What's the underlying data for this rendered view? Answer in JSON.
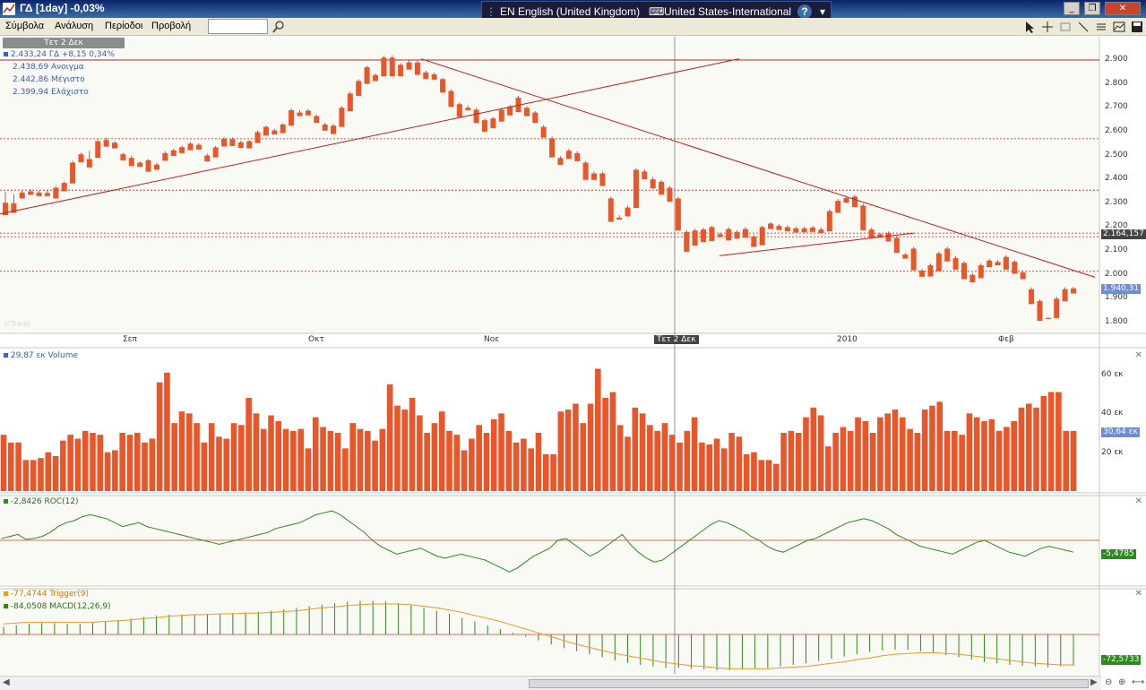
{
  "window": {
    "title": "ΓΔ [1day] -0,03%",
    "minimize": "_",
    "restore": "❐",
    "close": "✕"
  },
  "langbar": {
    "language": "EN English (United Kingdom)",
    "keyboard": "United States-International",
    "help": "?"
  },
  "menu": {
    "items": [
      "Σύμβολα",
      "Ανάλυση",
      "Περίοδοι",
      "Προβολή"
    ],
    "search_value": ""
  },
  "price_panel": {
    "date_badge": "Τετ 2 Δεκ",
    "legend": [
      "2.433,24 ΓΔ +8,15 0,34%",
      "2.438,69 Ανοιγμα",
      "2.442,86 Μέγιστο",
      "2.399,94 Ελάχιστο"
    ],
    "y_ticks": [
      "2.900",
      "2.800",
      "2.700",
      "2.600",
      "2.500",
      "2.400",
      "2.300",
      "2.200",
      "2.100",
      "2.000",
      "1.900",
      "1.800"
    ],
    "price_tag_1": "2.164,157",
    "price_tag_2": "1.940,31",
    "x_labels": [
      "Σεπ",
      "Οκτ",
      "Νοε",
      "Τετ 2 Δεκ",
      "2010",
      "Φεβ"
    ],
    "watermark": "©Trade"
  },
  "volume_panel": {
    "legend": "29,87 εκ Volume",
    "y_ticks": [
      "60 εκ",
      "40 εκ",
      "20 εκ"
    ],
    "value_tag": "30,64 εκ"
  },
  "roc_panel": {
    "legend": "-2,8426 ROC(12)",
    "value_tag": "-5,4785"
  },
  "macd_panel": {
    "legend_trigger": "-77,4744 Trigger(9)",
    "legend_macd": "-84,0508 MACD(12,26,9)",
    "value_tag": "-72,5733"
  },
  "colors": {
    "up": "#3b5fd1",
    "down": "#e8562a",
    "trendline": "#c02020",
    "roc": "#2c8a1e",
    "macd": "#2c8a1e",
    "trigger": "#e89a2a"
  },
  "chart_data": {
    "type": "candlestick",
    "y_range_price": [
      1800,
      2900
    ],
    "candles": [
      [
        2302,
        2347,
        2270,
        2250
      ],
      [
        2300,
        2338,
        2280,
        2260
      ],
      [
        2345,
        2352,
        2330,
        2320
      ],
      [
        2350,
        2360,
        2340,
        2335
      ],
      [
        2345,
        2352,
        2340,
        2330
      ],
      [
        2343,
        2356,
        2337,
        2330
      ],
      [
        2365,
        2372,
        2325,
        2320
      ],
      [
        2385,
        2392,
        2358,
        2350
      ],
      [
        2470,
        2478,
        2390,
        2383
      ],
      [
        2505,
        2512,
        2480,
        2472
      ],
      [
        2485,
        2520,
        2460,
        2450
      ],
      [
        2560,
        2568,
        2498,
        2490
      ],
      [
        2565,
        2575,
        2545,
        2537
      ],
      [
        2554,
        2560,
        2538,
        2530
      ],
      [
        2505,
        2510,
        2488,
        2480
      ],
      [
        2490,
        2500,
        2465,
        2456
      ],
      [
        2470,
        2476,
        2460,
        2452
      ],
      [
        2480,
        2485,
        2440,
        2432
      ],
      [
        2462,
        2470,
        2448,
        2440
      ],
      [
        2510,
        2518,
        2486,
        2478
      ],
      [
        2522,
        2528,
        2506,
        2498
      ],
      [
        2535,
        2542,
        2518,
        2510
      ],
      [
        2550,
        2556,
        2530,
        2522
      ],
      [
        2545,
        2552,
        2532,
        2525
      ],
      [
        2500,
        2508,
        2482,
        2475
      ],
      [
        2534,
        2540,
        2500,
        2492
      ],
      [
        2570,
        2578,
        2546,
        2538
      ],
      [
        2568,
        2575,
        2548,
        2540
      ],
      [
        2555,
        2562,
        2540,
        2532
      ],
      [
        2560,
        2566,
        2537,
        2530
      ],
      [
        2598,
        2605,
        2560,
        2552
      ],
      [
        2620,
        2626,
        2592,
        2584
      ],
      [
        2605,
        2612,
        2596,
        2588
      ],
      [
        2630,
        2636,
        2602,
        2594
      ],
      [
        2690,
        2697,
        2633,
        2625
      ],
      [
        2680,
        2690,
        2672,
        2665
      ],
      [
        2688,
        2695,
        2676,
        2668
      ],
      [
        2665,
        2672,
        2645,
        2637
      ],
      [
        2630,
        2637,
        2612,
        2604
      ],
      [
        2625,
        2632,
        2598,
        2590
      ],
      [
        2700,
        2707,
        2627,
        2620
      ],
      [
        2760,
        2768,
        2692,
        2685
      ],
      [
        2812,
        2820,
        2758,
        2750
      ],
      [
        2870,
        2876,
        2808,
        2800
      ],
      [
        2837,
        2844,
        2820,
        2812
      ],
      [
        2910,
        2918,
        2840,
        2832
      ],
      [
        2910,
        2920,
        2840,
        2832
      ],
      [
        2880,
        2887,
        2840,
        2832
      ],
      [
        2890,
        2900,
        2868,
        2860
      ],
      [
        2890,
        2898,
        2846,
        2838
      ],
      [
        2848,
        2856,
        2828,
        2820
      ],
      [
        2840,
        2847,
        2826,
        2818
      ],
      [
        2820,
        2826,
        2772,
        2764
      ],
      [
        2770,
        2778,
        2712,
        2704
      ],
      [
        2715,
        2722,
        2670,
        2662
      ],
      [
        2700,
        2710,
        2698,
        2690
      ],
      [
        2692,
        2700,
        2644,
        2636
      ],
      [
        2648,
        2656,
        2608,
        2600
      ],
      [
        2655,
        2662,
        2623,
        2615
      ],
      [
        2692,
        2700,
        2650,
        2642
      ],
      [
        2705,
        2713,
        2676,
        2668
      ],
      [
        2742,
        2750,
        2690,
        2682
      ],
      [
        2700,
        2707,
        2672,
        2665
      ],
      [
        2680,
        2686,
        2645,
        2637
      ],
      [
        2620,
        2627,
        2583,
        2575
      ],
      [
        2572,
        2580,
        2500,
        2492
      ],
      [
        2490,
        2497,
        2468,
        2460
      ],
      [
        2520,
        2527,
        2494,
        2486
      ],
      [
        2510,
        2518,
        2484,
        2476
      ],
      [
        2470,
        2476,
        2406,
        2398
      ],
      [
        2425,
        2433,
        2406,
        2398
      ],
      [
        2425,
        2432,
        2380,
        2372
      ],
      [
        2320,
        2328,
        2230,
        2222
      ],
      [
        2240,
        2250,
        2240,
        2232
      ],
      [
        2282,
        2290,
        2253,
        2245
      ],
      [
        2440,
        2448,
        2288,
        2280
      ],
      [
        2433,
        2442,
        2408,
        2400
      ],
      [
        2400,
        2410,
        2370,
        2362
      ],
      [
        2390,
        2398,
        2344,
        2336
      ],
      [
        2365,
        2372,
        2315,
        2307
      ],
      [
        2320,
        2328,
        2194,
        2186
      ],
      [
        2180,
        2188,
        2105,
        2097
      ],
      [
        2186,
        2194,
        2130,
        2122
      ],
      [
        2190,
        2197,
        2145,
        2137
      ],
      [
        2200,
        2207,
        2150,
        2142
      ],
      [
        2170,
        2177,
        2165,
        2158
      ],
      [
        2192,
        2200,
        2152,
        2144
      ],
      [
        2180,
        2187,
        2160,
        2152
      ],
      [
        2192,
        2200,
        2164,
        2156
      ],
      [
        2160,
        2168,
        2125,
        2117
      ],
      [
        2200,
        2207,
        2132,
        2124
      ],
      [
        2215,
        2222,
        2200,
        2192
      ],
      [
        2205,
        2212,
        2196,
        2188
      ],
      [
        2200,
        2207,
        2190,
        2182
      ],
      [
        2195,
        2202,
        2185,
        2177
      ],
      [
        2195,
        2202,
        2186,
        2178
      ],
      [
        2198,
        2206,
        2188,
        2180
      ],
      [
        2190,
        2198,
        2182,
        2174
      ],
      [
        2267,
        2275,
        2190,
        2182
      ],
      [
        2310,
        2318,
        2268,
        2260
      ],
      [
        2322,
        2330,
        2310,
        2302
      ],
      [
        2328,
        2336,
        2292,
        2284
      ],
      [
        2290,
        2298,
        2195,
        2187
      ],
      [
        2190,
        2198,
        2162,
        2154
      ],
      [
        2170,
        2177,
        2165,
        2157
      ],
      [
        2174,
        2182,
        2148,
        2140
      ],
      [
        2155,
        2162,
        2100,
        2092
      ],
      [
        2085,
        2092,
        2076,
        2068
      ],
      [
        2110,
        2118,
        2027,
        2019
      ],
      [
        2018,
        2025,
        2000,
        1992
      ],
      [
        2040,
        2048,
        2001,
        1993
      ],
      [
        2090,
        2098,
        2023,
        2015
      ],
      [
        2110,
        2118,
        2064,
        2056
      ],
      [
        2070,
        2078,
        2030,
        2022
      ],
      [
        2050,
        2058,
        1990,
        1982
      ],
      [
        2000,
        2008,
        1977,
        1969
      ],
      [
        2040,
        2048,
        1994,
        1986
      ],
      [
        2060,
        2068,
        2040,
        2032
      ],
      [
        2054,
        2062,
        2048,
        2040
      ],
      [
        2075,
        2083,
        2030,
        2022
      ],
      [
        2055,
        2062,
        2013,
        2005
      ],
      [
        2010,
        2018,
        1990,
        1982
      ],
      [
        1940,
        1948,
        1886,
        1878
      ],
      [
        1890,
        1898,
        1815,
        1807
      ],
      [
        1820,
        1828,
        1825,
        1817
      ],
      [
        1900,
        1908,
        1827,
        1819
      ],
      [
        1940,
        1948,
        1897,
        1889
      ],
      [
        1943,
        1950,
        1930,
        1922
      ]
    ],
    "volume": [
      29,
      25,
      25,
      16,
      16,
      17,
      20,
      18,
      26,
      29,
      27,
      31,
      30,
      29,
      20,
      21,
      30,
      29,
      30,
      25,
      27,
      56,
      61,
      35,
      41,
      40,
      35,
      25,
      35,
      28,
      27,
      35,
      34,
      48,
      40,
      32,
      39,
      36,
      32,
      31,
      32,
      22,
      38,
      33,
      31,
      30,
      22,
      35,
      32,
      31,
      26,
      32,
      55,
      44,
      42,
      48,
      39,
      30,
      35,
      41,
      31,
      29,
      21,
      27,
      34,
      30,
      37,
      40,
      31,
      25,
      27,
      22,
      30,
      19,
      19,
      41,
      42,
      45,
      35,
      45,
      63,
      48,
      51,
      34,
      28,
      43,
      40,
      34,
      31,
      35,
      29,
      25,
      31,
      38,
      25,
      24,
      27,
      22,
      30,
      28,
      19,
      20,
      16,
      16,
      14,
      30,
      31,
      30,
      38,
      43,
      39,
      23,
      30,
      33,
      31,
      38,
      36,
      30,
      38,
      40,
      42,
      38,
      32,
      30,
      42,
      44,
      46,
      31,
      31,
      29,
      40,
      38,
      36,
      37,
      31,
      33,
      36,
      43,
      45,
      43,
      49,
      51,
      51,
      31,
      31
    ],
    "roc": [
      1,
      2,
      3,
      0.5,
      1,
      2,
      4,
      7,
      9,
      10,
      12,
      13,
      12,
      11,
      9,
      7,
      8,
      9,
      7,
      6,
      5,
      4,
      3,
      2,
      1,
      0,
      -1,
      -2,
      -1,
      0,
      1,
      2,
      3,
      4,
      6,
      7,
      8,
      9,
      11,
      13,
      14,
      15,
      13,
      10,
      7,
      4,
      0,
      -3,
      -5,
      -7,
      -6,
      -5,
      -4,
      -6,
      -8,
      -9,
      -8,
      -7,
      -8,
      -9,
      -10,
      -12,
      -14,
      -16,
      -14,
      -11,
      -8,
      -6,
      -4,
      0,
      1,
      -2,
      -5,
      -8,
      -6,
      -3,
      0,
      3,
      -2,
      -6,
      -9,
      -11,
      -10,
      -7,
      -4,
      -1,
      2,
      5,
      8,
      10,
      9,
      7,
      5,
      2,
      0,
      -3,
      -5,
      -6,
      -4,
      -2,
      0,
      1,
      3,
      5,
      7,
      9,
      10,
      11,
      10,
      8,
      6,
      3,
      1,
      -1,
      -3,
      -4,
      -5,
      -6,
      -7,
      -5,
      -3,
      -1,
      0,
      -2,
      -4,
      -6,
      -7,
      -8,
      -6,
      -4,
      -3,
      -4,
      -5,
      -6
    ],
    "macd": [
      10,
      12,
      14,
      15,
      15,
      14,
      14,
      15,
      17,
      19,
      21,
      23,
      25,
      26,
      26,
      26,
      27,
      27,
      28,
      29,
      30,
      31,
      33,
      35,
      37,
      39,
      41,
      43,
      44,
      44,
      43,
      41,
      38,
      35,
      31,
      27,
      22,
      17,
      12,
      7,
      2,
      -3,
      -8,
      -13,
      -18,
      -22,
      -26,
      -30,
      -34,
      -37,
      -40,
      -42,
      -44,
      -44,
      -45,
      -46,
      -47,
      -47,
      -46,
      -45,
      -44,
      -42,
      -40,
      -38,
      -35,
      -32,
      -29,
      -26,
      -23,
      -21,
      -20,
      -20,
      -22,
      -24,
      -27,
      -30,
      -33,
      -36,
      -38,
      -40,
      -41,
      -42,
      -43,
      -42,
      -41
    ],
    "trigger": [
      14,
      15,
      16,
      16,
      16,
      16,
      16,
      16,
      17,
      18,
      19,
      21,
      22,
      24,
      25,
      26,
      26,
      27,
      27,
      28,
      28,
      29,
      30,
      31,
      33,
      35,
      36,
      38,
      39,
      40,
      40,
      40,
      39,
      37,
      35,
      32,
      29,
      25,
      21,
      17,
      12,
      7,
      2,
      -3,
      -8,
      -13,
      -17,
      -21,
      -25,
      -28,
      -31,
      -34,
      -37,
      -39,
      -41,
      -42,
      -44,
      -45,
      -45,
      -45,
      -45,
      -44,
      -43,
      -42,
      -40,
      -38,
      -36,
      -33,
      -31,
      -28,
      -26,
      -25,
      -24,
      -24,
      -25,
      -26,
      -28,
      -30,
      -32,
      -34,
      -36,
      -38,
      -39,
      -40,
      -40
    ]
  }
}
